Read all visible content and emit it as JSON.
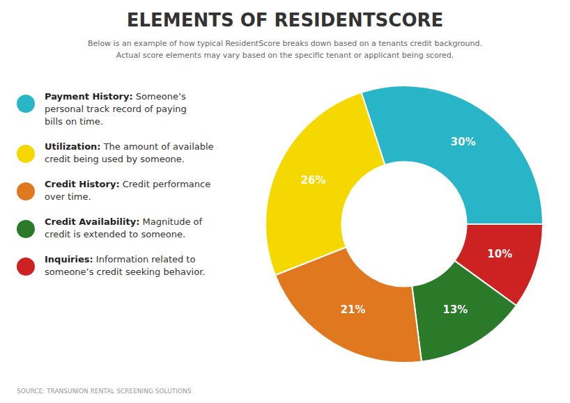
{
  "chart_data": {
    "type": "doughnut",
    "title": "ELEMENTS OF RESIDENTSCORE",
    "subtitle": [
      "Below is an example of how typical ResidentScore breaks down based on a tenants credit background.",
      "Actual score elements may vary based on the specific tenant or applicant being scored."
    ],
    "source": "SOURCE:  TRANSUNION RENTAL SCREENING SOLUTIONS",
    "values": [
      30,
      10,
      13,
      21,
      26
    ],
    "value_labels": [
      "30%",
      "10%",
      "13%",
      "21%",
      "26%"
    ],
    "colors": [
      "#29b5c8",
      "#cc2222",
      "#2a7a2a",
      "#e07820",
      "#f5d800"
    ],
    "data_labels": true,
    "legend": "left",
    "annotations": [
      {
        "color": "#29b5c8",
        "label": "Payment History:",
        "lines": [
          "Someone’s",
          "personal track record of paying",
          "bills on time."
        ]
      },
      {
        "color": "#f5d800",
        "label": "Utilization:",
        "lines": [
          "The amount of available",
          "credit being used by someone."
        ]
      },
      {
        "color": "#e07820",
        "label": "Credit History:",
        "lines": [
          "Credit performance",
          "over time."
        ]
      },
      {
        "color": "#2a7a2a",
        "label": "Credit Availability:",
        "lines": [
          "Magnitude of",
          "credit is extended to someone."
        ]
      },
      {
        "color": "#cc2222",
        "label": "Inquiries:",
        "lines": [
          "Information related to",
          "someone’s credit seeking behavior."
        ]
      }
    ]
  }
}
